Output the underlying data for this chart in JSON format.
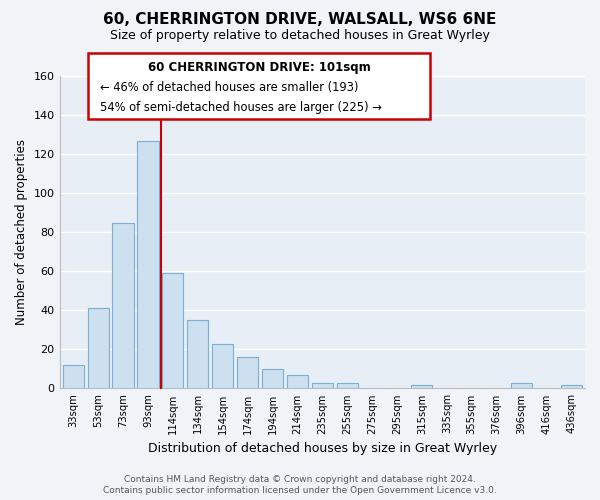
{
  "title": "60, CHERRINGTON DRIVE, WALSALL, WS6 6NE",
  "subtitle": "Size of property relative to detached houses in Great Wyrley",
  "xlabel": "Distribution of detached houses by size in Great Wyrley",
  "ylabel": "Number of detached properties",
  "bar_labels": [
    "33sqm",
    "53sqm",
    "73sqm",
    "93sqm",
    "114sqm",
    "134sqm",
    "154sqm",
    "174sqm",
    "194sqm",
    "214sqm",
    "235sqm",
    "255sqm",
    "275sqm",
    "295sqm",
    "315sqm",
    "335sqm",
    "355sqm",
    "376sqm",
    "396sqm",
    "416sqm",
    "436sqm"
  ],
  "bar_values": [
    12,
    41,
    85,
    127,
    59,
    35,
    23,
    16,
    10,
    7,
    3,
    3,
    0,
    0,
    2,
    0,
    0,
    0,
    3,
    0,
    2
  ],
  "bar_color": "#cce0f0",
  "bar_edge_color": "#7ab0d4",
  "ylim": [
    0,
    160
  ],
  "yticks": [
    0,
    20,
    40,
    60,
    80,
    100,
    120,
    140,
    160
  ],
  "red_line_x": 3.52,
  "annotation_title": "60 CHERRINGTON DRIVE: 101sqm",
  "annotation_line1": "← 46% of detached houses are smaller (193)",
  "annotation_line2": "54% of semi-detached houses are larger (225) →",
  "footnote1": "Contains HM Land Registry data © Crown copyright and database right 2024.",
  "footnote2": "Contains public sector information licensed under the Open Government Licence v3.0.",
  "bg_color": "#f0f4f8",
  "plot_bg_color": "#e8eef5",
  "grid_color": "#ffffff",
  "annotation_box_color": "#ffffff",
  "annotation_box_edge": "#cc0000"
}
